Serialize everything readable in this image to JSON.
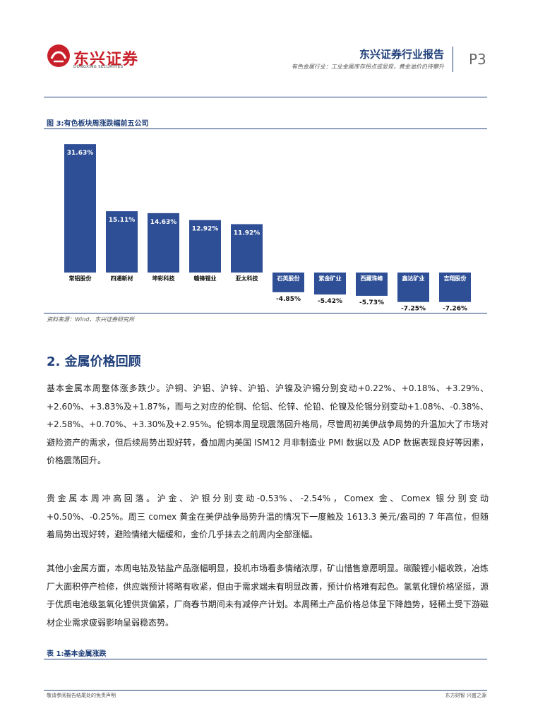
{
  "header": {
    "logo_cn": "东兴证券",
    "logo_en": "DONGXING SECURITIES",
    "report_type": "东兴证券行业报告",
    "subtitle": "有色金属行业：工业金属库存拐点或显现，黄金溢价仍待攀升",
    "page_number": "P3"
  },
  "figure": {
    "caption": "图 3:有色板块周涨跌幅前五公司",
    "source": "资料来源：Wind，东兴证券研究所"
  },
  "chart_data": {
    "type": "bar",
    "title": "有色板块周涨跌幅前五公司",
    "categories": [
      "常铝股份",
      "四通新材",
      "坤彩科技",
      "赣锋锂业",
      "亚太科技",
      "石英股份",
      "紫金矿业",
      "西藏珠峰",
      "鑫达矿业",
      "吉翔股份"
    ],
    "values": [
      31.63,
      15.11,
      14.63,
      12.92,
      11.92,
      -4.85,
      -5.42,
      -5.73,
      -7.25,
      -7.26
    ],
    "value_labels": [
      "31.63%",
      "15.11%",
      "14.63%",
      "12.92%",
      "11.92%",
      "-4.85%",
      "-5.42%",
      "-5.73%",
      "-7.25%",
      "-7.26%"
    ],
    "ylim": [
      -9,
      35
    ],
    "xlabel": "",
    "ylabel": "",
    "bar_color": "#2e4f96",
    "grid": false
  },
  "section": {
    "title": "2. 金属价格回顾"
  },
  "paragraphs": {
    "p1": "基本金属本周整体涨多跌少。沪铜、沪铝、沪锌、沪铅、沪镍及沪锡分别变动+0.22%、+0.18%、+3.29%、+2.60%、+3.83%及+1.87%，而与之对应的伦铜、伦铝、伦锌、伦铅、伦镍及伦锡分别变动+1.08%、-0.38%、+2.58%、+0.70%、+3.30%及+2.95%。伦铜本周呈现震荡回升格局，尽管周初美伊战争局势的升温加大了市场对避险资产的需求，但后续局势出现好转，叠加周内美国 ISM12 月非制造业 PMI 数据以及 ADP 数据表现良好等因素，价格震荡回升。",
    "p2": "贵金属本周冲高回落。沪金、沪银分别变动-0.53%、-2.54%，Comex 金、Comex 银分别变动+0.50%、-0.25%。周三 comex 黄金在美伊战争局势升温的情况下一度触及 1613.3 美元/盎司的 7 年高位，但随着局势出现好转，避险情绪大幅缓和，金价几乎抹去之前周内全部涨幅。",
    "p3": "其他小金属方面，本周电钴及钴盐产品涨幅明显，投机市场看多情绪浓厚，矿山惜售意愿明显。碳酸锂小幅收跌，冶炼厂大面积停产检修，供应端预计将略有收紧，但由于需求端未有明显改善，预计价格难有起色。氢氧化锂价格坚挺，源于优质电池级氢氧化锂供货偏紧，厂商春节期间未有减停产计划。本周稀土产品价格总体呈下降趋势，轻稀土受下游磁材企业需求疲弱影响呈弱稳态势。"
  },
  "table": {
    "caption": "表 1:基本金属涨跌"
  },
  "footer": {
    "left": "敬请参阅报告结尾处的免责声明",
    "right": "东方财智  兴盛之源"
  },
  "colors": {
    "brand_red": "#c8202a",
    "brand_blue": "#1f3f7a"
  }
}
